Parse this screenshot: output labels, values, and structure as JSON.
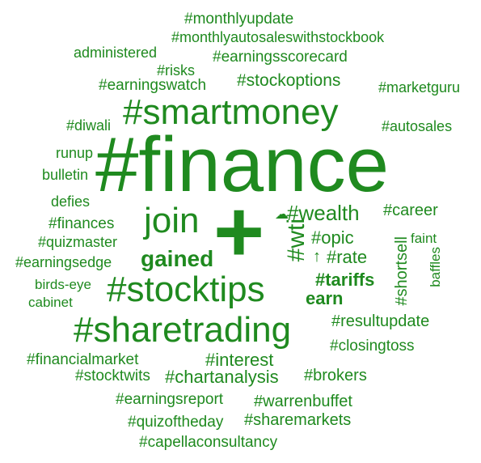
{
  "colors": {
    "word": "#1f8a1f",
    "background": "#ffffff"
  },
  "words": {
    "finance": "#finance",
    "plus": "+",
    "smartmoney": "#smartmoney",
    "stocktips": "#stocktips",
    "sharetrading": "#sharetrading",
    "join": "join",
    "gained": "gained",
    "wealth": "#wealth",
    "wti": "#wti",
    "opic": "#opic",
    "rate": "#rate",
    "tariffs": "#tariffs",
    "earn": "earn",
    "cloud_glyph": "☁",
    "arrow_glyph": "↑",
    "monthlyupdate": "#monthlyupdate",
    "monthlyautosaleswithstockbook": "#monthlyautosaleswithstockbook",
    "administered": "administered",
    "earningsscorecard": "#earningsscorecard",
    "risks": "#risks",
    "earningswatch": "#earningswatch",
    "stockoptions": "#stockoptions",
    "marketguru": "#marketguru",
    "diwali": "#diwali",
    "autosales": "#autosales",
    "runup": "runup",
    "bulletin": "bulletin",
    "defies": "defies",
    "finances": "#finances",
    "quizmaster": "#quizmaster",
    "earningsedge": "#earningsedge",
    "birdseye": "birds-eye",
    "cabinet": "cabinet",
    "career": "#career",
    "faint": "faint",
    "shortsell": "#shortsell",
    "baffles": "baffles",
    "resultupdate": "#resultupdate",
    "closingtoss": "#closingtoss",
    "financialmarket": "#financialmarket",
    "interest": "#interest",
    "stocktwits": "#stocktwits",
    "chartanalysis": "#chartanalysis",
    "brokers": "#brokers",
    "earningsreport": "#earningsreport",
    "warrenbuffet": "#warrenbuffet",
    "quizoftheday": "#quizoftheday",
    "sharemarkets": "#sharemarkets",
    "capellaconsultancy": "#capellaconsultancy"
  }
}
